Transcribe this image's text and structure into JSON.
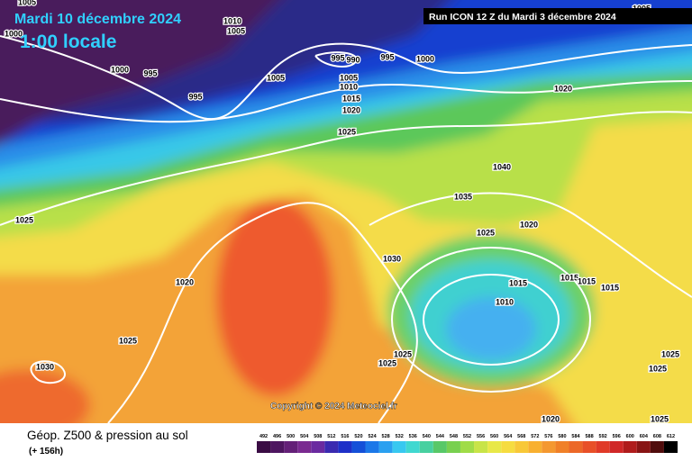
{
  "header": {
    "date": "Mardi 10 décembre 2024",
    "time": "1:00 locale",
    "run": "Run ICON 12 Z du Mardi 3 décembre 2024"
  },
  "copyright": "Copyright © 2024 Meteociel.fr",
  "isobar_labels": [
    1005,
    1010,
    1005,
    1000,
    995,
    990,
    995,
    1000,
    1000,
    995,
    1005,
    1005,
    1010,
    995,
    1015,
    1020,
    1020,
    1025,
    1040,
    1035,
    1025,
    1020,
    1025,
    1030,
    1020,
    1015,
    1015,
    1015,
    1015,
    1010,
    1025,
    1025,
    1025,
    1030,
    1025,
    1025,
    1020,
    1025,
    1005
  ],
  "footer": {
    "title": "Géop. Z500 & pression au sol",
    "lead": "(+ 156h)"
  },
  "color_scale": {
    "values": [
      492,
      496,
      500,
      504,
      508,
      512,
      516,
      520,
      524,
      528,
      532,
      536,
      540,
      544,
      548,
      552,
      556,
      560,
      564,
      568,
      572,
      576,
      580,
      584,
      588,
      592,
      596,
      600,
      604,
      608,
      612
    ],
    "colors": [
      "#3a0c44",
      "#4e1660",
      "#642078",
      "#7a2a90",
      "#6a2aa0",
      "#3a2ab0",
      "#1e30c8",
      "#1450d8",
      "#1c78e8",
      "#2aa0f0",
      "#38c8f0",
      "#40d8d0",
      "#48d0a0",
      "#58c868",
      "#78d050",
      "#a0dc48",
      "#c8e448",
      "#e8e848",
      "#f6dc40",
      "#f8c838",
      "#f8b030",
      "#f49830",
      "#f08028",
      "#ec6828",
      "#e85028",
      "#e03a28",
      "#d02828",
      "#b01c1c",
      "#881414",
      "#500c0c",
      "#000000"
    ]
  }
}
